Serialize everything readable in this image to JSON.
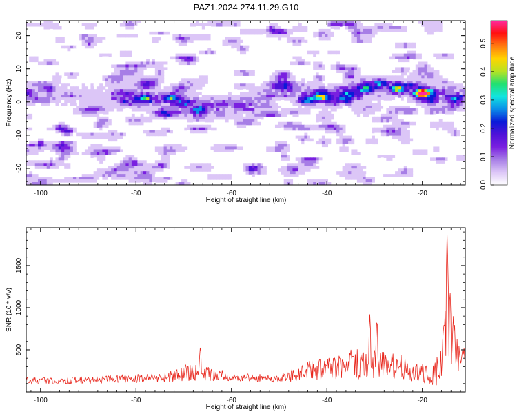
{
  "title": "PAZ1.2024.274.11.29.G10",
  "colors": {
    "snr_line": "#e8281e",
    "axis": "#000000",
    "spectrogram_palette": [
      "#ffffff",
      "#dcc6f7",
      "#a77ee6",
      "#7a20e0",
      "#4f12d8",
      "#0a1ad8",
      "#0a8ee8",
      "#12e4e0",
      "#22e070",
      "#b8e222",
      "#ffd400",
      "#ff7a10",
      "#ff1010",
      "#ff2aa0"
    ]
  },
  "chart_data": [
    {
      "type": "heatmap",
      "xlabel": "Height of straight line (km)",
      "ylabel": "Frequency (Hz)",
      "xlim": [
        -103,
        -11
      ],
      "ylim": [
        -25,
        24.5
      ],
      "xticks": [
        -100,
        -80,
        -60,
        -40,
        -20
      ],
      "yticks": [
        20,
        10,
        0,
        -10,
        -20
      ],
      "xtick_labels": [
        "-100",
        "-80",
        "-60",
        "-40",
        "-20"
      ],
      "ytick_labels": [
        "20",
        "10",
        "0",
        "-10",
        "-20"
      ],
      "colorbar": {
        "label": "Normalized spectral amplitude",
        "range": [
          0,
          0.58
        ],
        "ticks": [
          0.0,
          0.1,
          0.2,
          0.3,
          0.4,
          0.5
        ],
        "tick_labels": [
          "0.0",
          "0.1",
          "0.2",
          "0.3",
          "0.4",
          "0.5"
        ]
      },
      "ridge": [
        {
          "x": -100,
          "y": 2
        },
        {
          "x": -90,
          "y": 2
        },
        {
          "x": -82,
          "y": 1.5
        },
        {
          "x": -75,
          "y": 0.5
        },
        {
          "x": -68,
          "y": -1
        },
        {
          "x": -62,
          "y": -1.5
        },
        {
          "x": -55,
          "y": 0
        },
        {
          "x": -50,
          "y": 5
        },
        {
          "x": -45,
          "y": 2.5
        },
        {
          "x": -40,
          "y": 1.5
        },
        {
          "x": -35,
          "y": 2.5
        },
        {
          "x": -30,
          "y": 4
        },
        {
          "x": -25,
          "y": 4.5
        },
        {
          "x": -20,
          "y": 3
        },
        {
          "x": -15,
          "y": 2
        },
        {
          "x": -11,
          "y": 2
        }
      ],
      "hotspots": [
        {
          "x": -78,
          "y": 1,
          "v": 0.22
        },
        {
          "x": -73,
          "y": 1,
          "v": 0.18
        },
        {
          "x": -67,
          "y": -2.5,
          "v": 0.25
        },
        {
          "x": -70,
          "y": 0,
          "v": 0.15
        },
        {
          "x": -41,
          "y": 1.5,
          "v": 0.4
        },
        {
          "x": -44,
          "y": 0.5,
          "v": 0.22
        },
        {
          "x": -36,
          "y": 1,
          "v": 0.2
        },
        {
          "x": -32,
          "y": 4,
          "v": 0.24
        },
        {
          "x": -29,
          "y": 5.5,
          "v": 0.2
        },
        {
          "x": -25,
          "y": 4,
          "v": 0.32
        },
        {
          "x": -20,
          "y": 2.5,
          "v": 0.55
        },
        {
          "x": -13,
          "y": 1,
          "v": 0.2
        },
        {
          "x": -49,
          "y": 8,
          "v": 0.12
        }
      ]
    },
    {
      "type": "line",
      "xlabel": "Height of straight line (km)",
      "ylabel": "SNR (10 * v/v)",
      "xlim": [
        -103,
        -11
      ],
      "ylim": [
        0,
        1950
      ],
      "xticks": [
        -100,
        -80,
        -60,
        -40,
        -20
      ],
      "yticks": [
        500,
        1000,
        1500
      ],
      "xtick_labels": [
        "-100",
        "-80",
        "-60",
        "-40",
        "-20"
      ],
      "ytick_labels": [
        "500",
        "1000",
        "1500"
      ],
      "envelope": [
        {
          "x": -103,
          "base": 130,
          "spread": 90
        },
        {
          "x": -90,
          "base": 140,
          "spread": 90
        },
        {
          "x": -75,
          "base": 170,
          "spread": 110
        },
        {
          "x": -68,
          "base": 240,
          "spread": 220
        },
        {
          "x": -60,
          "base": 180,
          "spread": 100
        },
        {
          "x": -50,
          "base": 160,
          "spread": 90
        },
        {
          "x": -45,
          "base": 240,
          "spread": 220
        },
        {
          "x": -38,
          "base": 300,
          "spread": 300
        },
        {
          "x": -31,
          "base": 360,
          "spread": 420
        },
        {
          "x": -25,
          "base": 300,
          "spread": 300
        },
        {
          "x": -18,
          "base": 200,
          "spread": 240
        },
        {
          "x": -16,
          "base": 300,
          "spread": 500
        },
        {
          "x": -14.8,
          "base": 900,
          "spread": 1000
        },
        {
          "x": -13,
          "base": 500,
          "spread": 600
        },
        {
          "x": -11,
          "base": 450,
          "spread": 300
        }
      ],
      "peaks": [
        {
          "x": -66.5,
          "y": 560
        },
        {
          "x": -31,
          "y": 930
        },
        {
          "x": -29.5,
          "y": 900
        },
        {
          "x": -14.8,
          "y": 1930
        },
        {
          "x": -14.2,
          "y": 1250
        },
        {
          "x": -13.5,
          "y": 900
        }
      ],
      "n_points": 700
    }
  ]
}
